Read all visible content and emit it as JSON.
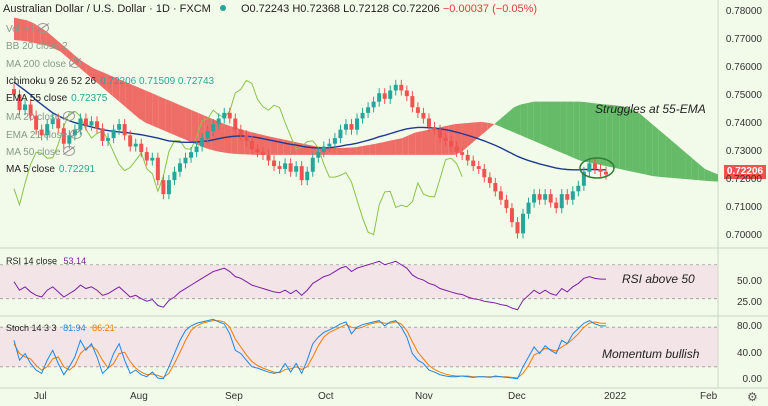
{
  "header": {
    "symbol": "Australian Dollar / U.S. Dollar · 1D · FXCM",
    "open": "O0.72243",
    "high": "H0.72368",
    "low": "L0.72128",
    "close": "C0.72206",
    "change": "−0.00037 (−0.05%)"
  },
  "indicators": [
    {
      "label": "Vol 50",
      "value": "",
      "active": false,
      "eye": true
    },
    {
      "label": "BB 20 close 2",
      "value": "",
      "active": false,
      "eye": false
    },
    {
      "label": "MA 200 close",
      "value": "",
      "active": false,
      "eye": true
    },
    {
      "label": "Ichimoku 9 26 52 26",
      "value": "0.72206  0.71509  0.72743",
      "active": true,
      "eye": false
    },
    {
      "label": "EMA 55 close",
      "value": "0.72375",
      "active": true,
      "eye": false
    },
    {
      "label": "MA 20 close",
      "value": "",
      "active": false,
      "eye": true
    },
    {
      "label": "EMA 21 close",
      "value": "",
      "active": false,
      "eye": true
    },
    {
      "label": "MA 50 close",
      "value": "",
      "active": false,
      "eye": true
    },
    {
      "label": "MA 5 close",
      "value": "0.72291",
      "active": true,
      "eye": false
    }
  ],
  "annotations": {
    "main": "Struggles at 55-EMA",
    "rsi": "RSI above 50",
    "stoch": "Momentum bullish"
  },
  "rsi_panel": {
    "label": "RSI 14 close",
    "value": "53.14"
  },
  "stoch_panel": {
    "label": "Stoch 14 3 3",
    "k": "81.94",
    "d": "86.21"
  },
  "last_price": "0.72206",
  "colors": {
    "up": "#26a69a",
    "down": "#ef5350",
    "ema": "#1f3a93",
    "cloud_bull": "#4caf50",
    "cloud_bear": "#ef5350",
    "rsi": "#7b1fa2",
    "stoch_k": "#1e88e5",
    "stoch_d": "#f57c00"
  },
  "chart_data": {
    "type": "candlestick",
    "y_ticks": [
      "0.78000",
      "0.77000",
      "0.76000",
      "0.75000",
      "0.74000",
      "0.73000",
      "0.72000",
      "0.71000",
      "0.70000"
    ],
    "ylim": [
      0.6965,
      0.7825
    ],
    "x_ticks": [
      "Jul",
      "Aug",
      "Sep",
      "Oct",
      "Nov",
      "Dec",
      "2022",
      "Feb"
    ],
    "rsi_ticks": [
      "50.00",
      "25.00"
    ],
    "stoch_ticks": [
      "80.00",
      "40.00",
      "0.00"
    ],
    "closes": [
      0.7505,
      0.745,
      0.747,
      0.743,
      0.738,
      0.736,
      0.74,
      0.742,
      0.7385,
      0.733,
      0.736,
      0.738,
      0.742,
      0.7395,
      0.741,
      0.7385,
      0.734,
      0.735,
      0.738,
      0.74,
      0.736,
      0.732,
      0.733,
      0.73,
      0.727,
      0.728,
      0.72,
      0.715,
      0.72,
      0.723,
      0.726,
      0.728,
      0.73,
      0.732,
      0.735,
      0.7375,
      0.74,
      0.742,
      0.744,
      0.742,
      0.738,
      0.736,
      0.734,
      0.731,
      0.73,
      0.729,
      0.727,
      0.725,
      0.724,
      0.726,
      0.723,
      0.725,
      0.72,
      0.723,
      0.728,
      0.73,
      0.732,
      0.733,
      0.735,
      0.738,
      0.74,
      0.738,
      0.742,
      0.744,
      0.746,
      0.748,
      0.751,
      0.749,
      0.752,
      0.754,
      0.752,
      0.75,
      0.746,
      0.744,
      0.742,
      0.739,
      0.738,
      0.735,
      0.734,
      0.732,
      0.73,
      0.729,
      0.727,
      0.725,
      0.724,
      0.721,
      0.719,
      0.716,
      0.713,
      0.71,
      0.705,
      0.701,
      0.708,
      0.712,
      0.715,
      0.713,
      0.715,
      0.712,
      0.71,
      0.715,
      0.713,
      0.716,
      0.718,
      0.723,
      0.726,
      0.724,
      0.723,
      0.722
    ],
    "ema55": [
      0.755,
      0.7535,
      0.752,
      0.7505,
      0.7485,
      0.747,
      0.7455,
      0.744,
      0.743,
      0.742,
      0.7412,
      0.7405,
      0.74,
      0.7395,
      0.739,
      0.7385,
      0.738,
      0.7377,
      0.7374,
      0.7372,
      0.737,
      0.7368,
      0.7365,
      0.7362,
      0.7358,
      0.7354,
      0.735,
      0.7345,
      0.734,
      0.7338,
      0.7336,
      0.7335,
      0.7335,
      0.7336,
      0.7338,
      0.734,
      0.7344,
      0.7348,
      0.7352,
      0.7355,
      0.7357,
      0.7358,
      0.7357,
      0.7355,
      0.7352,
      0.7348,
      0.7344,
      0.734,
      0.7336,
      0.7332,
      0.7328,
      0.7325,
      0.7321,
      0.7318,
      0.7316,
      0.7315,
      0.7315,
      0.7316,
      0.7318,
      0.7321,
      0.7325,
      0.7328,
      0.7332,
      0.7337,
      0.7342,
      0.7348,
      0.7355,
      0.736,
      0.7366,
      0.7372,
      0.7378,
      0.7383,
      0.7386,
      0.7388,
      0.7388,
      0.7387,
      0.7386,
      0.7383,
      0.738,
      0.7376,
      0.7371,
      0.7366,
      0.736,
      0.7354,
      0.7347,
      0.734,
      0.7332,
      0.7324,
      0.7315,
      0.7305,
      0.7295,
      0.7285,
      0.7277,
      0.727,
      0.7264,
      0.7258,
      0.7253,
      0.7248,
      0.7243,
      0.724,
      0.7238,
      0.7237,
      0.7237,
      0.7238,
      0.7238,
      0.7238,
      0.7237,
      0.7237
    ],
    "cloud_a": [
      0.778,
      0.7775,
      0.777,
      0.776,
      0.7745,
      0.773,
      0.771,
      0.769,
      0.767,
      0.765,
      0.763,
      0.7615,
      0.76,
      0.759,
      0.758,
      0.757,
      0.756,
      0.755,
      0.754,
      0.753,
      0.752,
      0.751,
      0.75,
      0.749,
      0.748,
      0.747,
      0.746,
      0.745,
      0.744,
      0.743,
      0.742,
      0.741,
      0.74,
      0.7392,
      0.7385,
      0.7378,
      0.7372,
      0.7366,
      0.736,
      0.7355,
      0.735,
      0.7345,
      0.734,
      0.7335,
      0.733,
      0.7325,
      0.732,
      0.7318,
      0.7316,
      0.7315,
      0.7315,
      0.7316,
      0.7318,
      0.7322,
      0.7326,
      0.733,
      0.7335,
      0.734,
      0.7345,
      0.735,
      0.736,
      0.737,
      0.7375,
      0.738,
      0.7385,
      0.739,
      0.7395,
      0.74,
      0.7402,
      0.7404,
      0.7406,
      0.7408,
      0.7405,
      0.74,
      0.739,
      0.738,
      0.737,
      0.736,
      0.735,
      0.734,
      0.733,
      0.732,
      0.731,
      0.73,
      0.729,
      0.728,
      0.727,
      0.7265,
      0.726,
      0.7255,
      0.725,
      0.7245,
      0.724,
      0.7235,
      0.723,
      0.7225,
      0.722,
      0.7215,
      0.7212,
      0.721,
      0.7208,
      0.7206,
      0.7204,
      0.7202,
      0.72,
      0.7198,
      0.7196,
      0.7195
    ],
    "cloud_b": [
      0.77,
      0.7698,
      0.7695,
      0.769,
      0.7685,
      0.768,
      0.767,
      0.766,
      0.764,
      0.762,
      0.76,
      0.758,
      0.756,
      0.754,
      0.752,
      0.75,
      0.748,
      0.746,
      0.744,
      0.742,
      0.7405,
      0.7395,
      0.7385,
      0.7375,
      0.7365,
      0.7355,
      0.7345,
      0.7335,
      0.7325,
      0.7315,
      0.7308,
      0.7302,
      0.7298,
      0.7295,
      0.7293,
      0.7292,
      0.7291,
      0.729,
      0.729,
      0.729,
      0.729,
      0.729,
      0.729,
      0.729,
      0.729,
      0.729,
      0.729,
      0.729,
      0.729,
      0.729,
      0.729,
      0.729,
      0.729,
      0.729,
      0.729,
      0.729,
      0.729,
      0.729,
      0.729,
      0.729,
      0.729,
      0.729,
      0.729,
      0.729,
      0.729,
      0.729,
      0.729,
      0.729,
      0.73,
      0.732,
      0.734,
      0.736,
      0.738,
      0.74,
      0.742,
      0.744,
      0.746,
      0.747,
      0.7475,
      0.748,
      0.748,
      0.748,
      0.748,
      0.748,
      0.748,
      0.748,
      0.748,
      0.7478,
      0.7475,
      0.7472,
      0.747,
      0.7468,
      0.7465,
      0.746,
      0.745,
      0.744,
      0.742,
      0.74,
      0.738,
      0.736,
      0.734,
      0.732,
      0.73,
      0.728,
      0.726,
      0.724,
      0.723,
      0.722
    ],
    "rsi": [
      50,
      40,
      44,
      38,
      34,
      32,
      40,
      44,
      38,
      32,
      36,
      40,
      46,
      42,
      44,
      40,
      34,
      36,
      40,
      44,
      38,
      32,
      34,
      30,
      27,
      29,
      22,
      20,
      28,
      32,
      38,
      42,
      46,
      50,
      54,
      58,
      62,
      64,
      66,
      62,
      56,
      54,
      50,
      46,
      44,
      42,
      40,
      38,
      37,
      40,
      36,
      40,
      34,
      40,
      48,
      52,
      56,
      58,
      62,
      66,
      68,
      62,
      66,
      68,
      70,
      72,
      74,
      70,
      72,
      74,
      70,
      66,
      58,
      54,
      52,
      48,
      46,
      42,
      40,
      38,
      36,
      35,
      32,
      30,
      29,
      27,
      26,
      25,
      23,
      22,
      19,
      17,
      28,
      34,
      40,
      36,
      40,
      36,
      34,
      42,
      38,
      44,
      48,
      54,
      56,
      54,
      53,
      53
    ],
    "stoch_k": [
      60,
      30,
      40,
      25,
      15,
      10,
      30,
      45,
      25,
      8,
      20,
      35,
      60,
      45,
      55,
      35,
      10,
      18,
      40,
      55,
      30,
      10,
      15,
      8,
      5,
      12,
      3,
      2,
      20,
      40,
      60,
      75,
      82,
      86,
      88,
      90,
      92,
      88,
      85,
      70,
      45,
      40,
      30,
      20,
      18,
      15,
      12,
      10,
      12,
      25,
      12,
      25,
      10,
      30,
      55,
      65,
      72,
      76,
      80,
      85,
      88,
      70,
      80,
      84,
      86,
      88,
      90,
      82,
      88,
      90,
      80,
      65,
      40,
      30,
      25,
      15,
      12,
      8,
      6,
      5,
      5,
      6,
      5,
      4,
      5,
      5,
      4,
      6,
      5,
      4,
      3,
      2,
      20,
      35,
      50,
      40,
      52,
      45,
      40,
      60,
      55,
      70,
      78,
      86,
      90,
      85,
      82,
      82
    ],
    "stoch_d": [
      55,
      40,
      35,
      32,
      22,
      15,
      20,
      32,
      35,
      20,
      15,
      22,
      40,
      48,
      52,
      45,
      30,
      18,
      25,
      40,
      42,
      28,
      18,
      12,
      8,
      9,
      7,
      4,
      10,
      25,
      42,
      60,
      75,
      82,
      86,
      88,
      90,
      90,
      88,
      80,
      62,
      50,
      38,
      28,
      22,
      18,
      15,
      12,
      11,
      16,
      17,
      20,
      16,
      20,
      35,
      52,
      65,
      72,
      76,
      80,
      84,
      80,
      78,
      80,
      84,
      86,
      88,
      86,
      86,
      88,
      85,
      75,
      58,
      42,
      32,
      22,
      16,
      12,
      9,
      7,
      6,
      6,
      6,
      5,
      5,
      5,
      5,
      5,
      5,
      5,
      4,
      3,
      10,
      22,
      38,
      42,
      48,
      46,
      44,
      50,
      55,
      62,
      70,
      80,
      86,
      88,
      86,
      86
    ]
  }
}
